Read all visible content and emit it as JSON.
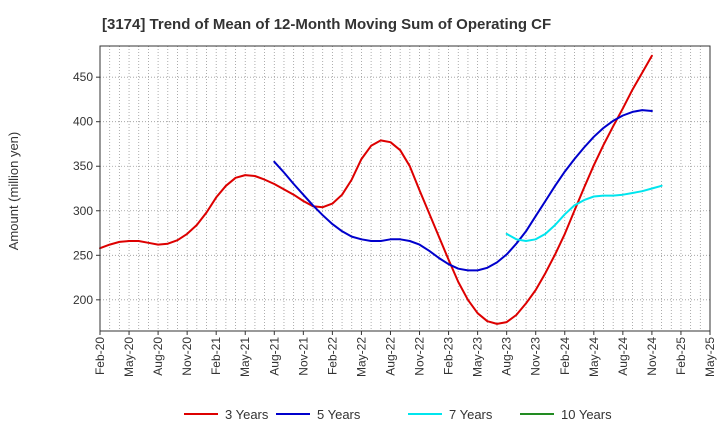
{
  "chart_data": {
    "type": "line",
    "title": "[3174]  Trend of Mean of 12-Month Moving Sum of Operating CF",
    "xlabel": "",
    "ylabel": "Amount (million yen)",
    "ylim": [
      165,
      485
    ],
    "yticks": [
      200,
      250,
      300,
      350,
      400,
      450
    ],
    "grid": true,
    "legend_position": "bottom",
    "x_tick_labels": [
      "Feb-20",
      "May-20",
      "Aug-20",
      "Nov-20",
      "Feb-21",
      "May-21",
      "Aug-21",
      "Nov-21",
      "Feb-22",
      "May-22",
      "Aug-22",
      "Nov-22",
      "Feb-23",
      "May-23",
      "Aug-23",
      "Nov-23",
      "Feb-24",
      "May-24",
      "Aug-24",
      "Nov-24",
      "Feb-25",
      "May-25"
    ],
    "months_span": 63,
    "series": [
      {
        "name": "3 Years",
        "color": "#dd0000",
        "start_month": 0,
        "values": [
          258,
          262,
          265,
          266,
          266,
          264,
          262,
          263,
          267,
          274,
          284,
          298,
          315,
          328,
          337,
          340,
          339,
          335,
          330,
          324,
          318,
          311,
          305,
          304,
          308,
          318,
          335,
          358,
          373,
          379,
          377,
          368,
          350,
          323,
          297,
          271,
          245,
          220,
          200,
          185,
          176,
          173,
          175,
          183,
          196,
          211,
          230,
          251,
          274,
          300,
          326,
          351,
          374,
          395,
          415,
          436,
          455,
          474
        ]
      },
      {
        "name": "5 Years",
        "color": "#0000cc",
        "start_month": 18,
        "values": [
          355,
          343,
          330,
          318,
          306,
          295,
          285,
          277,
          271,
          268,
          266,
          266,
          268,
          268,
          266,
          262,
          255,
          247,
          240,
          235,
          233,
          233,
          236,
          242,
          251,
          263,
          277,
          294,
          311,
          328,
          344,
          358,
          371,
          383,
          393,
          401,
          407,
          411,
          413,
          412
        ]
      },
      {
        "name": "7 Years",
        "color": "#00e5ee",
        "start_month": 42,
        "values": [
          274,
          268,
          266,
          268,
          274,
          284,
          296,
          306,
          312,
          316,
          317,
          317,
          318,
          320,
          322,
          325,
          328
        ]
      },
      {
        "name": "10 Years",
        "color": "#228b22",
        "start_month": 0,
        "values": []
      }
    ]
  }
}
